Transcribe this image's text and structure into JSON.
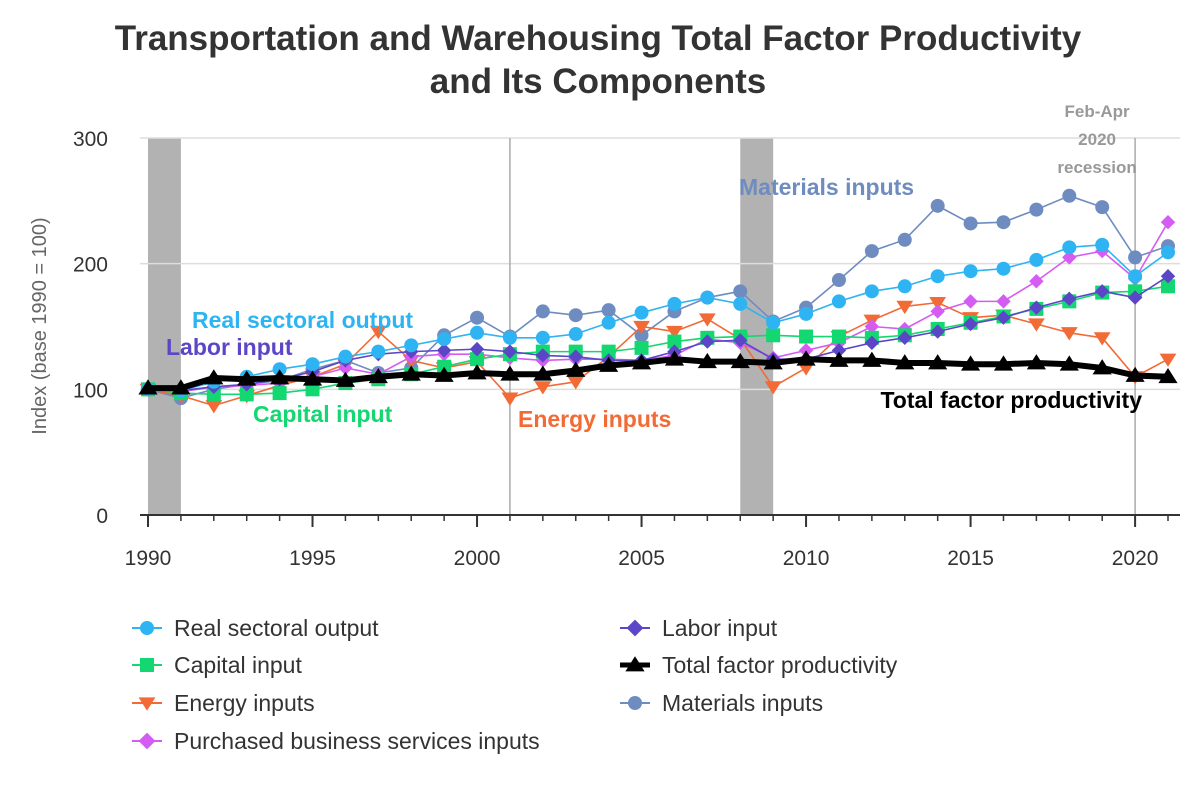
{
  "chart_data": {
    "type": "line",
    "title": [
      "Transportation and Warehousing Total Factor Productivity",
      "and Its Components"
    ],
    "ylabel": "Index (base 1990 = 100)",
    "xlabel": "",
    "ylim": [
      0,
      300
    ],
    "xlim": [
      1990,
      2021
    ],
    "y_ticks": [
      0,
      100,
      200,
      300
    ],
    "x_ticks": [
      1990,
      1995,
      2000,
      2005,
      2010,
      2015,
      2020
    ],
    "recession_bars": [
      [
        1990.0,
        1991.0
      ],
      [
        2008.0,
        2009.0
      ]
    ],
    "reference_lines": [
      2001,
      2020
    ],
    "recession_note": [
      "Feb-Apr",
      "2020",
      "recession"
    ],
    "x": [
      1990,
      1991,
      1992,
      1993,
      1994,
      1995,
      1996,
      1997,
      1998,
      1999,
      2000,
      2001,
      2002,
      2003,
      2004,
      2005,
      2006,
      2007,
      2008,
      2009,
      2010,
      2011,
      2012,
      2013,
      2014,
      2015,
      2016,
      2017,
      2018,
      2019,
      2020,
      2021
    ],
    "series": [
      {
        "name": "Real sectoral output",
        "color": "#2eb4f2",
        "marker": "circle",
        "values": [
          100,
          99,
          106,
          110,
          116,
          120,
          126,
          130,
          135,
          140,
          145,
          141,
          141,
          144,
          153,
          161,
          168,
          173,
          168,
          153,
          160,
          170,
          178,
          182,
          190,
          194,
          196,
          203,
          213,
          215,
          190,
          209
        ]
      },
      {
        "name": "Labor input",
        "color": "#5b46c7",
        "marker": "diamond",
        "values": [
          100,
          99,
          102,
          104,
          108,
          114,
          123,
          128,
          130,
          131,
          132,
          130,
          127,
          126,
          123,
          123,
          130,
          138,
          139,
          124,
          124,
          131,
          137,
          141,
          146,
          152,
          157,
          165,
          172,
          178,
          173,
          190
        ]
      },
      {
        "name": "Capital input",
        "color": "#13d770",
        "marker": "square",
        "values": [
          100,
          97,
          96,
          96,
          97,
          100,
          105,
          108,
          112,
          118,
          124,
          128,
          130,
          130,
          130,
          133,
          138,
          141,
          142,
          143,
          142,
          142,
          141,
          143,
          148,
          153,
          158,
          164,
          170,
          177,
          178,
          182
        ]
      },
      {
        "name": "Total factor productivity",
        "color": "#000000",
        "marker": "triangle",
        "values": [
          101,
          101,
          109,
          108,
          109,
          108,
          107,
          110,
          112,
          111,
          113,
          112,
          112,
          115,
          119,
          121,
          124,
          122,
          122,
          121,
          124,
          123,
          123,
          121,
          121,
          120,
          120,
          121,
          120,
          117,
          111,
          110
        ]
      },
      {
        "name": "Energy inputs",
        "color": "#f26a35",
        "marker": "triangle-down",
        "values": [
          100,
          95,
          87,
          95,
          103,
          110,
          120,
          146,
          123,
          117,
          122,
          93,
          102,
          106,
          126,
          150,
          146,
          156,
          140,
          102,
          117,
          142,
          155,
          166,
          169,
          157,
          159,
          152,
          145,
          141,
          110,
          124
        ]
      },
      {
        "name": "Materials inputs",
        "color": "#6f8cc0",
        "marker": "circle",
        "values": [
          100,
          93,
          100,
          104,
          107,
          116,
          123,
          113,
          117,
          143,
          157,
          142,
          162,
          159,
          163,
          143,
          162,
          173,
          178,
          154,
          165,
          187,
          210,
          219,
          246,
          232,
          233,
          243,
          254,
          245,
          205,
          214
        ]
      },
      {
        "name": "Purchased business services inputs",
        "color": "#d45cf2",
        "marker": "diamond",
        "values": [
          100,
          98,
          102,
          103,
          105,
          110,
          117,
          112,
          126,
          128,
          128,
          125,
          123,
          124,
          124,
          123,
          127,
          140,
          137,
          125,
          131,
          137,
          150,
          148,
          162,
          170,
          170,
          186,
          205,
          210,
          188,
          233
        ]
      }
    ],
    "annotations": [
      {
        "text": "Real sectoral output",
        "color": "#2eb4f2"
      },
      {
        "text": "Labor input",
        "color": "#5b46c7"
      },
      {
        "text": "Capital input",
        "color": "#13d770"
      },
      {
        "text": "Energy inputs",
        "color": "#f26a35"
      },
      {
        "text": "Materials inputs",
        "color": "#6f8cc0"
      },
      {
        "text": "Total factor productivity",
        "color": "#000000"
      }
    ],
    "legend_position": "bottom"
  }
}
